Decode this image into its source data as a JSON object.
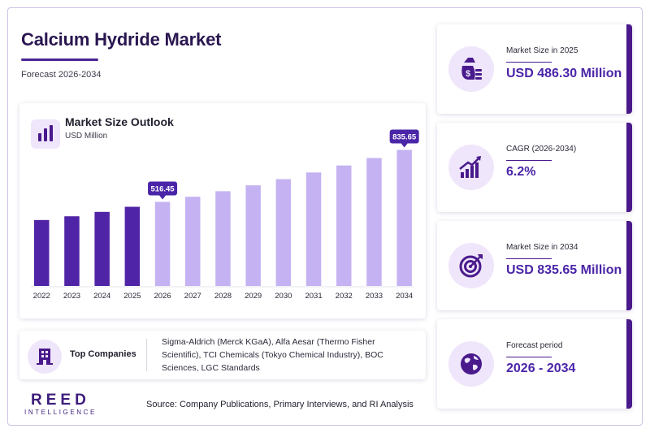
{
  "header": {
    "title": "Calcium Hydride Market",
    "subtitle": "Forecast 2026-2034"
  },
  "chart_panel": {
    "title": "Market Size Outlook",
    "unit": "USD Million",
    "icon": "bar-chart-icon"
  },
  "chart_data": {
    "type": "bar",
    "title": "Market Size Outlook",
    "ylabel": "USD Million",
    "categories": [
      "2022",
      "2023",
      "2024",
      "2025",
      "2026",
      "2027",
      "2028",
      "2029",
      "2030",
      "2031",
      "2032",
      "2033",
      "2034"
    ],
    "values": [
      405,
      428,
      455,
      486.3,
      516.45,
      548,
      582,
      618,
      656,
      697,
      740,
      786,
      835.65
    ],
    "ylim": [
      0,
      850
    ],
    "grid": false,
    "callouts": [
      {
        "category": "2026",
        "label": "516.45"
      },
      {
        "category": "2034",
        "label": "835.65"
      }
    ],
    "colors": {
      "historical": "#4f24a6",
      "forecast": "#c4b2f2",
      "callout": "#4a25a8"
    }
  },
  "companies": {
    "label": "Top Companies",
    "icon": "building-icon",
    "text": "Sigma-Aldrich (Merck KGaA), Alfa Aesar (Thermo Fisher Scientific), TCI Chemicals (Tokyo Chemical Industry), BOC Sciences, LGC Standards"
  },
  "footer": {
    "brand": "REED",
    "brand_sub": "INTELLIGENCE",
    "source": "Source: Company Publications, Primary Interviews, and RI Analysis"
  },
  "stats": [
    {
      "label": "Market Size in 2025",
      "value": "USD 486.30 Million",
      "icon": "money-bag-icon"
    },
    {
      "label": "CAGR (2026-2034)",
      "value": "6.2%",
      "icon": "growth-chart-icon"
    },
    {
      "label": "Market Size in 2034",
      "value": "USD 835.65 Million",
      "icon": "target-icon"
    },
    {
      "label": "Forecast period",
      "value": "2026 - 2034",
      "icon": "globe-icon"
    }
  ],
  "colors": {
    "brand": "#4a1a8c",
    "accent": "#4a25a8",
    "icon_bg": "#efe6fb"
  }
}
